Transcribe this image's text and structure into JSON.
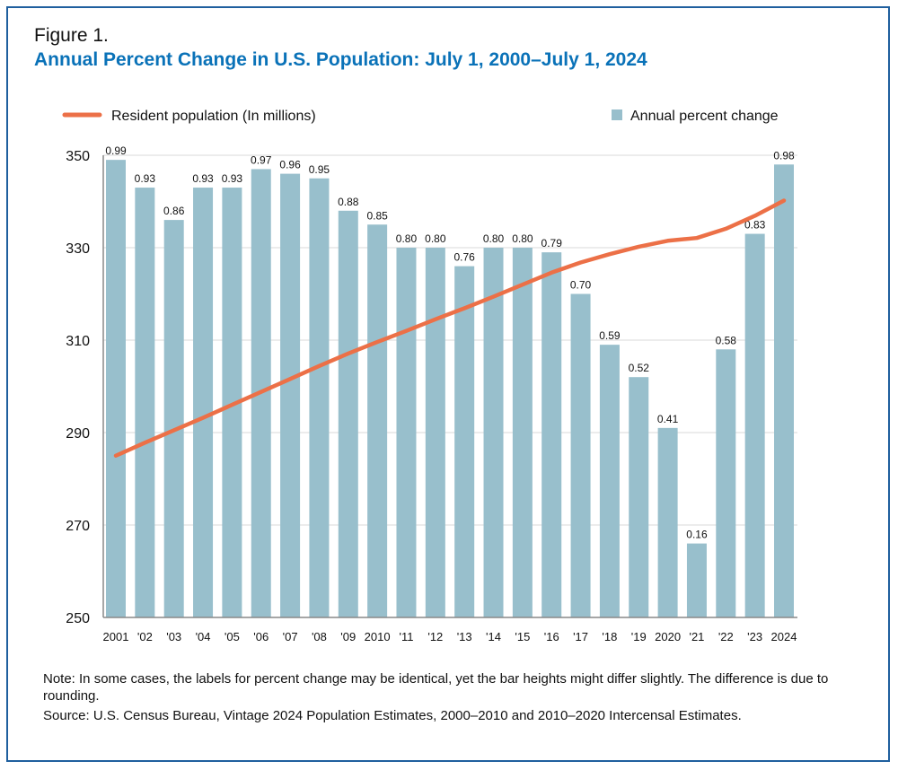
{
  "figure_label": "Figure 1.",
  "colors": {
    "bar": "#98bfcc",
    "line": "#ec7047",
    "title": "#0a72b8",
    "frame": "#1f5f9e"
  },
  "chart_data": {
    "type": "bar+line",
    "title": "Annual Percent Change in U.S. Population: July 1, 2000–July 1, 2024",
    "categories": [
      "2001",
      "'02",
      "'03",
      "'04",
      "'05",
      "'06",
      "'07",
      "'08",
      "'09",
      "2010",
      "'11",
      "'12",
      "'13",
      "'14",
      "'15",
      "'16",
      "'17",
      "'18",
      "'19",
      "2020",
      "'21",
      "'22",
      "'23",
      "2024"
    ],
    "y_ticks": [
      250,
      270,
      290,
      310,
      330,
      350
    ],
    "ylim": [
      250,
      350
    ],
    "grid": true,
    "legend_position": "top",
    "series": [
      {
        "name": "Resident population (In millions)",
        "type": "line",
        "values": [
          285.0,
          287.8,
          290.5,
          293.2,
          296.0,
          298.8,
          301.6,
          304.4,
          307.1,
          309.6,
          312.0,
          314.5,
          316.9,
          319.4,
          322.0,
          324.6,
          326.8,
          328.6,
          330.2,
          331.5,
          332.1,
          334.1,
          336.9,
          340.2
        ]
      },
      {
        "name": "Annual percent change",
        "type": "bar",
        "values": [
          0.99,
          0.93,
          0.86,
          0.93,
          0.93,
          0.97,
          0.96,
          0.95,
          0.88,
          0.85,
          0.8,
          0.8,
          0.76,
          0.8,
          0.8,
          0.79,
          0.7,
          0.59,
          0.52,
          0.41,
          0.16,
          0.58,
          0.83,
          0.98
        ],
        "labels": [
          "0.99",
          "0.93",
          "0.86",
          "0.93",
          "0.93",
          "0.97",
          "0.96",
          "0.95",
          "0.88",
          "0.85",
          "0.80",
          "0.80",
          "0.76",
          "0.80",
          "0.80",
          "0.79",
          "0.70",
          "0.59",
          "0.52",
          "0.41",
          "0.16",
          "0.58",
          "0.83",
          "0.98"
        ]
      }
    ]
  },
  "note": "Note: In some cases, the labels for percent change may be identical, yet the bar heights might differ slightly. The difference is due to rounding.",
  "source": "Source: U.S. Census Bureau, Vintage 2024 Population Estimates, 2000–2010 and 2010–2020 Intercensal Estimates."
}
